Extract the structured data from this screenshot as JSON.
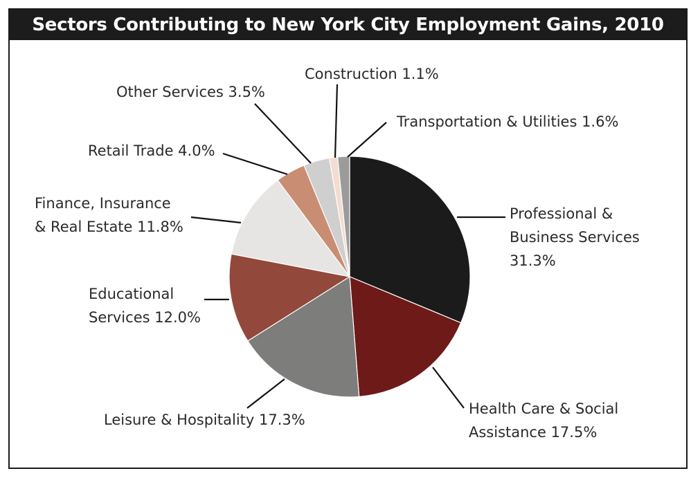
{
  "chart_data": {
    "type": "pie",
    "title": "Sectors Contributing to New York City Employment Gains, 2010",
    "unit": "%",
    "start_angle_deg": 0,
    "direction": "clockwise",
    "slices": [
      {
        "label_lines": [
          "Professional &",
          "Business Services",
          "31.3%"
        ],
        "value": 31.3,
        "color": "#1b1b1b"
      },
      {
        "label_lines": [
          "Health Care & Social",
          "Assistance 17.5%"
        ],
        "value": 17.5,
        "color": "#6e1a18"
      },
      {
        "label_lines": [
          "Leisure & Hospitality 17.3%"
        ],
        "value": 17.3,
        "color": "#7d7d7b"
      },
      {
        "label_lines": [
          "Educational",
          "Services 12.0%"
        ],
        "value": 12.0,
        "color": "#92483a"
      },
      {
        "label_lines": [
          "Finance, Insurance",
          "& Real Estate 11.8%"
        ],
        "value": 11.8,
        "color": "#e6e5e3"
      },
      {
        "label_lines": [
          "Retail Trade 4.0%"
        ],
        "value": 4.0,
        "color": "#c98d74"
      },
      {
        "label_lines": [
          "Other Services 3.5%"
        ],
        "value": 3.5,
        "color": "#cfcfcf"
      },
      {
        "label_lines": [
          "Construction 1.1%"
        ],
        "value": 1.1,
        "color": "#f3ddd0"
      },
      {
        "label_lines": [
          "Transportation & Utilities 1.6%"
        ],
        "value": 1.6,
        "color": "#9b9b9b"
      }
    ]
  }
}
